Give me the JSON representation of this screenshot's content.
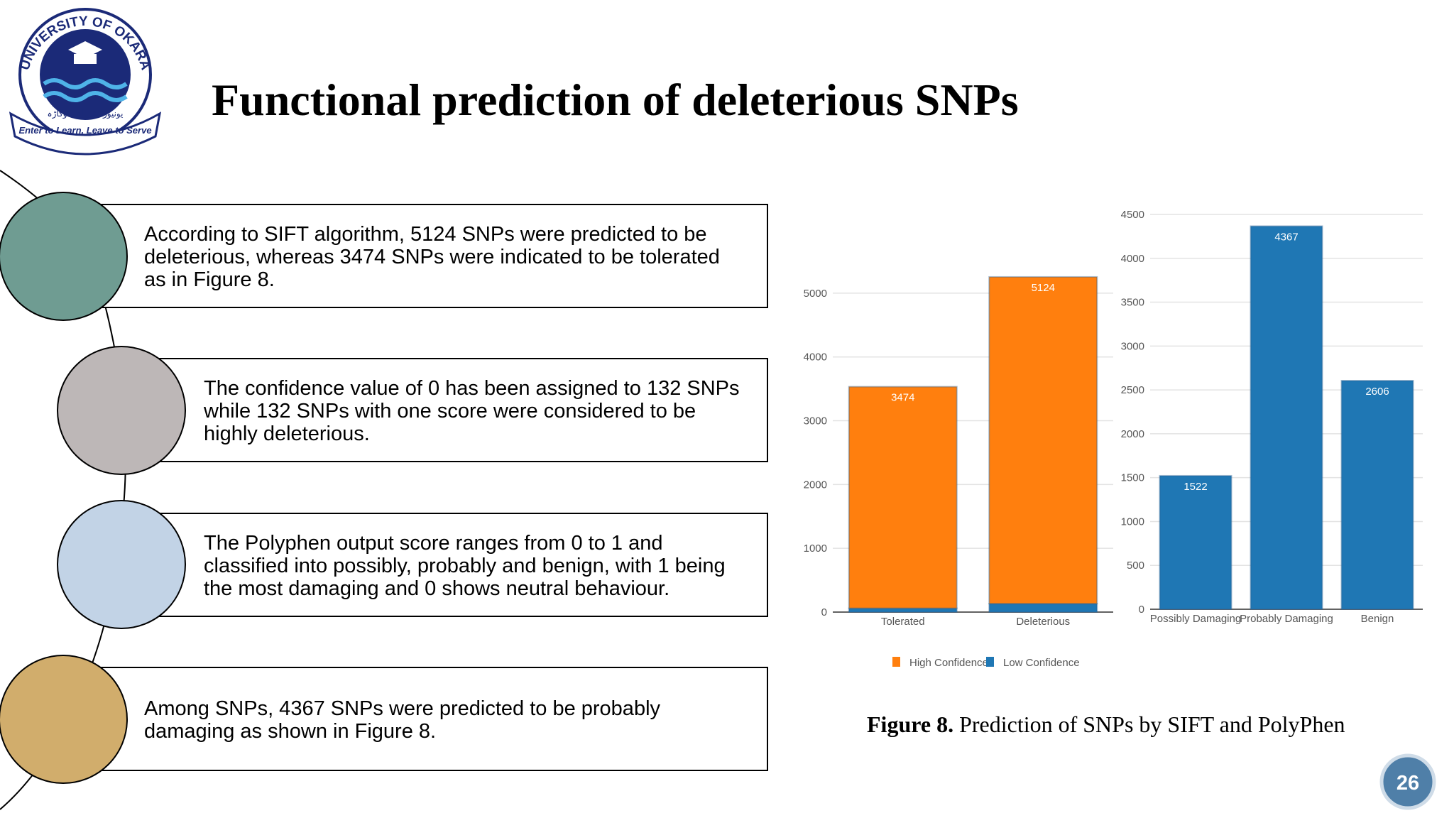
{
  "logo": {
    "name": "UNIVERSITY OF OKARA",
    "urdu": "یونیورسٹی آف اوکاڑہ",
    "motto": "Enter to Learn, Leave to Serve"
  },
  "header": {
    "title": "Functional prediction of deleterious SNPs"
  },
  "items": [
    {
      "lines": [
        "According to SIFT algorithm, 5124 SNPs were predicted to be",
        "deleterious, whereas 3474 SNPs were indicated to be tolerated",
        "as in Figure 8."
      ]
    },
    {
      "lines": [
        "The confidence value of 0 has been assigned to 132 SNPs",
        "while 132 SNPs with one score were considered to be",
        "highly deleterious."
      ]
    },
    {
      "lines": [
        "The Polyphen output score ranges from 0 to 1 and",
        "classified into possibly, probably and benign, with 1 being",
        "the most damaging and 0 shows neutral behaviour."
      ]
    },
    {
      "lines": [
        "Among SNPs, 4367 SNPs were predicted to be probably",
        "damaging as shown in Figure 8."
      ]
    }
  ],
  "chart_data": [
    {
      "type": "bar",
      "stacked": true,
      "categories": [
        "Tolerated",
        "Deleterious"
      ],
      "series": [
        {
          "name": "High Confidence",
          "color": "#ff7f0e",
          "values": [
            3474,
            5124
          ]
        },
        {
          "name": "Low Confidence",
          "color": "#1f77b4",
          "values": [
            60,
            132
          ]
        }
      ],
      "ylim": [
        0,
        5500
      ],
      "yticks": [
        0,
        1000,
        2000,
        3000,
        4000,
        5000
      ],
      "grid": true,
      "legend": "bottom"
    },
    {
      "type": "bar",
      "categories": [
        "Possibly Damaging",
        "Probably Damaging",
        "Benign"
      ],
      "values": [
        1522,
        4367,
        2606
      ],
      "color": "#1f77b4",
      "ylim": [
        0,
        4500
      ],
      "yticks": [
        0,
        500,
        1000,
        1500,
        2000,
        2500,
        3000,
        3500,
        4000,
        4500
      ],
      "grid": true
    }
  ],
  "caption": {
    "label": "Figure 8.",
    "text": "Prediction of SNPs by SIFT and PolyPhen"
  },
  "page_number": "26"
}
